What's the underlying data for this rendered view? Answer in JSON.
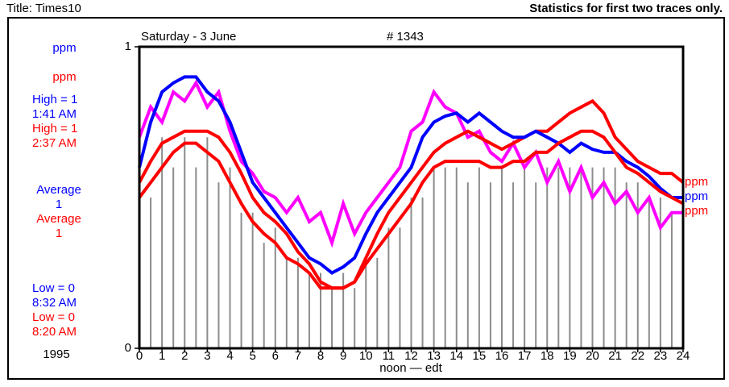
{
  "header": {
    "title": "Title:  Times10",
    "note": "Statistics for first two traces only."
  },
  "side_panel": {
    "unit_1": "ppm",
    "unit_2": "ppm",
    "high_1": "High = 1",
    "high_time_1": "1:41  AM",
    "high_2": "High = 1",
    "high_time_2": "2:37  AM",
    "avg_label_1": "Average",
    "avg_1": "1",
    "avg_label_2": "Average",
    "avg_2": "1",
    "low_1": "Low = 0",
    "low_time_1": "8:32  AM",
    "low_2": "Low = 0",
    "low_time_2": "8:20  AM",
    "year": "1995"
  },
  "chart_data": {
    "type": "line",
    "date": "Saturday - 3 June",
    "record": "# 1343",
    "x_label": "noon — edt",
    "xlim": [
      0,
      24
    ],
    "xticks": [
      0,
      1,
      2,
      3,
      4,
      5,
      6,
      7,
      8,
      9,
      10,
      11,
      12,
      13,
      14,
      15,
      16,
      17,
      18,
      19,
      20,
      21,
      22,
      23,
      24
    ],
    "ylim": [
      0,
      1
    ],
    "yticks": [
      0,
      1
    ],
    "x": [
      0,
      0.5,
      1,
      1.5,
      2,
      2.5,
      3,
      3.5,
      4,
      4.5,
      5,
      5.5,
      6,
      6.5,
      7,
      7.5,
      8,
      8.5,
      9,
      9.5,
      10,
      10.5,
      11,
      11.5,
      12,
      12.5,
      13,
      13.5,
      14,
      14.5,
      15,
      15.5,
      16,
      16.5,
      17,
      17.5,
      18,
      18.5,
      19,
      19.5,
      20,
      20.5,
      21,
      21.5,
      22,
      22.5,
      23,
      23.5,
      24
    ],
    "stems": {
      "color": "#8c8c8c",
      "values": [
        0.5,
        0.5,
        0.7,
        0.6,
        0.7,
        0.6,
        0.7,
        0.55,
        0.6,
        0.45,
        0.45,
        0.35,
        0.4,
        0.3,
        0.3,
        0.25,
        0.25,
        0.2,
        0.25,
        0.2,
        0.3,
        0.3,
        0.4,
        0.4,
        0.5,
        0.5,
        0.6,
        0.6,
        0.6,
        0.55,
        0.6,
        0.55,
        0.6,
        0.55,
        0.6,
        0.55,
        0.6,
        0.6,
        0.6,
        0.6,
        0.6,
        0.6,
        0.6,
        0.55,
        0.55,
        0.5,
        0.5,
        0.45,
        0.45
      ]
    },
    "series": [
      {
        "color": "#ff00ff",
        "values": [
          0.7,
          0.8,
          0.75,
          0.85,
          0.82,
          0.88,
          0.8,
          0.85,
          0.72,
          0.62,
          0.58,
          0.52,
          0.5,
          0.45,
          0.5,
          0.42,
          0.45,
          0.35,
          0.48,
          0.38,
          0.45,
          0.5,
          0.55,
          0.6,
          0.72,
          0.75,
          0.85,
          0.8,
          0.78,
          0.7,
          0.72,
          0.65,
          0.62,
          0.68,
          0.6,
          0.65,
          0.55,
          0.62,
          0.52,
          0.6,
          0.5,
          0.55,
          0.48,
          0.52,
          0.45,
          0.5,
          0.4,
          0.45,
          0.45
        ]
      },
      {
        "name": "ppm",
        "color": "#ff0000",
        "values": [
          0.55,
          0.62,
          0.68,
          0.7,
          0.72,
          0.72,
          0.72,
          0.7,
          0.65,
          0.58,
          0.5,
          0.45,
          0.42,
          0.38,
          0.32,
          0.28,
          0.22,
          0.2,
          0.2,
          0.22,
          0.3,
          0.38,
          0.45,
          0.5,
          0.55,
          0.6,
          0.65,
          0.68,
          0.7,
          0.72,
          0.7,
          0.68,
          0.66,
          0.68,
          0.7,
          0.72,
          0.72,
          0.75,
          0.78,
          0.8,
          0.82,
          0.78,
          0.7,
          0.66,
          0.62,
          0.6,
          0.58,
          0.58,
          0.55
        ]
      },
      {
        "name": "ppm",
        "color": "#0000ff",
        "values": [
          0.6,
          0.75,
          0.85,
          0.88,
          0.9,
          0.9,
          0.85,
          0.82,
          0.75,
          0.65,
          0.55,
          0.5,
          0.45,
          0.4,
          0.35,
          0.3,
          0.28,
          0.25,
          0.27,
          0.3,
          0.38,
          0.45,
          0.5,
          0.55,
          0.6,
          0.7,
          0.75,
          0.77,
          0.78,
          0.75,
          0.78,
          0.75,
          0.72,
          0.7,
          0.7,
          0.72,
          0.7,
          0.68,
          0.65,
          0.68,
          0.66,
          0.65,
          0.65,
          0.62,
          0.6,
          0.57,
          0.53,
          0.5,
          0.5
        ]
      },
      {
        "name": "ppm",
        "color": "#ff0000",
        "values": [
          0.5,
          0.55,
          0.6,
          0.65,
          0.68,
          0.68,
          0.65,
          0.62,
          0.55,
          0.48,
          0.42,
          0.38,
          0.35,
          0.3,
          0.28,
          0.25,
          0.2,
          0.2,
          0.2,
          0.22,
          0.28,
          0.33,
          0.38,
          0.43,
          0.48,
          0.55,
          0.6,
          0.62,
          0.62,
          0.62,
          0.62,
          0.6,
          0.6,
          0.62,
          0.62,
          0.65,
          0.65,
          0.68,
          0.7,
          0.72,
          0.72,
          0.7,
          0.65,
          0.6,
          0.58,
          0.55,
          0.52,
          0.5,
          0.48
        ]
      }
    ]
  }
}
